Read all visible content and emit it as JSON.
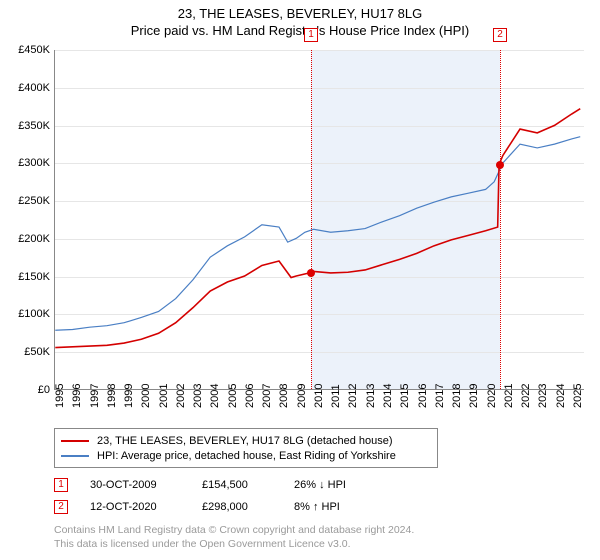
{
  "title": "23, THE LEASES, BEVERLEY, HU17 8LG",
  "subtitle": "Price paid vs. HM Land Registry's House Price Index (HPI)",
  "chart": {
    "type": "line",
    "background_color": "#ffffff",
    "grid_color": "#e6e6e6",
    "axis_color": "#888888",
    "shade_color": "#eaf1fa",
    "title_fontsize": 13,
    "label_fontsize": 11,
    "x_years": [
      1995,
      1996,
      1997,
      1998,
      1999,
      2000,
      2001,
      2002,
      2003,
      2004,
      2005,
      2006,
      2007,
      2008,
      2009,
      2010,
      2011,
      2012,
      2013,
      2014,
      2015,
      2016,
      2017,
      2018,
      2019,
      2020,
      2021,
      2022,
      2023,
      2024,
      2025
    ],
    "xlim": [
      1995,
      2025.7
    ],
    "ylim": [
      0,
      450000
    ],
    "ytick_step": 50000,
    "yticks": [
      "£0",
      "£50K",
      "£100K",
      "£150K",
      "£200K",
      "£250K",
      "£300K",
      "£350K",
      "£400K",
      "£450K"
    ],
    "shade_start": 2009.83,
    "shade_end": 2020.78,
    "series": [
      {
        "name": "hpi",
        "label": "HPI: Average price, detached house, East Riding of Yorkshire",
        "color": "#4a7fc4",
        "line_width": 1.2,
        "points": [
          [
            1995,
            78000
          ],
          [
            1996,
            79000
          ],
          [
            1997,
            82000
          ],
          [
            1998,
            84000
          ],
          [
            1999,
            88000
          ],
          [
            2000,
            95000
          ],
          [
            2001,
            103000
          ],
          [
            2002,
            120000
          ],
          [
            2003,
            145000
          ],
          [
            2004,
            175000
          ],
          [
            2005,
            190000
          ],
          [
            2006,
            202000
          ],
          [
            2007,
            218000
          ],
          [
            2008,
            215000
          ],
          [
            2008.5,
            195000
          ],
          [
            2009,
            200000
          ],
          [
            2009.5,
            208000
          ],
          [
            2010,
            212000
          ],
          [
            2011,
            208000
          ],
          [
            2012,
            210000
          ],
          [
            2013,
            213000
          ],
          [
            2014,
            222000
          ],
          [
            2015,
            230000
          ],
          [
            2016,
            240000
          ],
          [
            2017,
            248000
          ],
          [
            2018,
            255000
          ],
          [
            2019,
            260000
          ],
          [
            2020,
            265000
          ],
          [
            2020.5,
            275000
          ],
          [
            2021,
            300000
          ],
          [
            2022,
            325000
          ],
          [
            2023,
            320000
          ],
          [
            2024,
            325000
          ],
          [
            2025,
            332000
          ],
          [
            2025.5,
            335000
          ]
        ]
      },
      {
        "name": "price_paid",
        "label": "23, THE LEASES, BEVERLEY, HU17 8LG (detached house)",
        "color": "#d40000",
        "line_width": 1.6,
        "points": [
          [
            1995,
            55000
          ],
          [
            1996,
            56000
          ],
          [
            1997,
            57000
          ],
          [
            1998,
            58000
          ],
          [
            1999,
            61000
          ],
          [
            2000,
            66000
          ],
          [
            2001,
            74000
          ],
          [
            2002,
            88000
          ],
          [
            2003,
            108000
          ],
          [
            2004,
            130000
          ],
          [
            2005,
            142000
          ],
          [
            2006,
            150000
          ],
          [
            2007,
            164000
          ],
          [
            2008,
            170000
          ],
          [
            2008.7,
            148000
          ],
          [
            2009,
            150000
          ],
          [
            2009.83,
            154500
          ],
          [
            2010,
            156000
          ],
          [
            2011,
            154000
          ],
          [
            2012,
            155000
          ],
          [
            2013,
            158000
          ],
          [
            2014,
            165000
          ],
          [
            2015,
            172000
          ],
          [
            2016,
            180000
          ],
          [
            2017,
            190000
          ],
          [
            2018,
            198000
          ],
          [
            2019,
            204000
          ],
          [
            2020,
            210000
          ],
          [
            2020.7,
            215000
          ],
          [
            2020.78,
            298000
          ],
          [
            2021,
            310000
          ],
          [
            2022,
            345000
          ],
          [
            2023,
            340000
          ],
          [
            2024,
            350000
          ],
          [
            2025,
            365000
          ],
          [
            2025.5,
            372000
          ]
        ]
      }
    ],
    "markers": [
      {
        "n": "1",
        "x": 2009.83,
        "y_box": -22,
        "dot_y": 154500
      },
      {
        "n": "2",
        "x": 2020.78,
        "y_box": -22,
        "dot_y": 298000
      }
    ]
  },
  "legend": {
    "items": [
      {
        "color": "#d40000",
        "text": "23, THE LEASES, BEVERLEY, HU17 8LG (detached house)"
      },
      {
        "color": "#4a7fc4",
        "text": "HPI: Average price, detached house, East Riding of Yorkshire"
      }
    ]
  },
  "sales": [
    {
      "n": "1",
      "date": "30-OCT-2009",
      "price": "£154,500",
      "delta": "26% ↓ HPI"
    },
    {
      "n": "2",
      "date": "12-OCT-2020",
      "price": "£298,000",
      "delta": "8% ↑ HPI"
    }
  ],
  "footer_line1": "Contains HM Land Registry data © Crown copyright and database right 2024.",
  "footer_line2": "This data is licensed under the Open Government Licence v3.0."
}
